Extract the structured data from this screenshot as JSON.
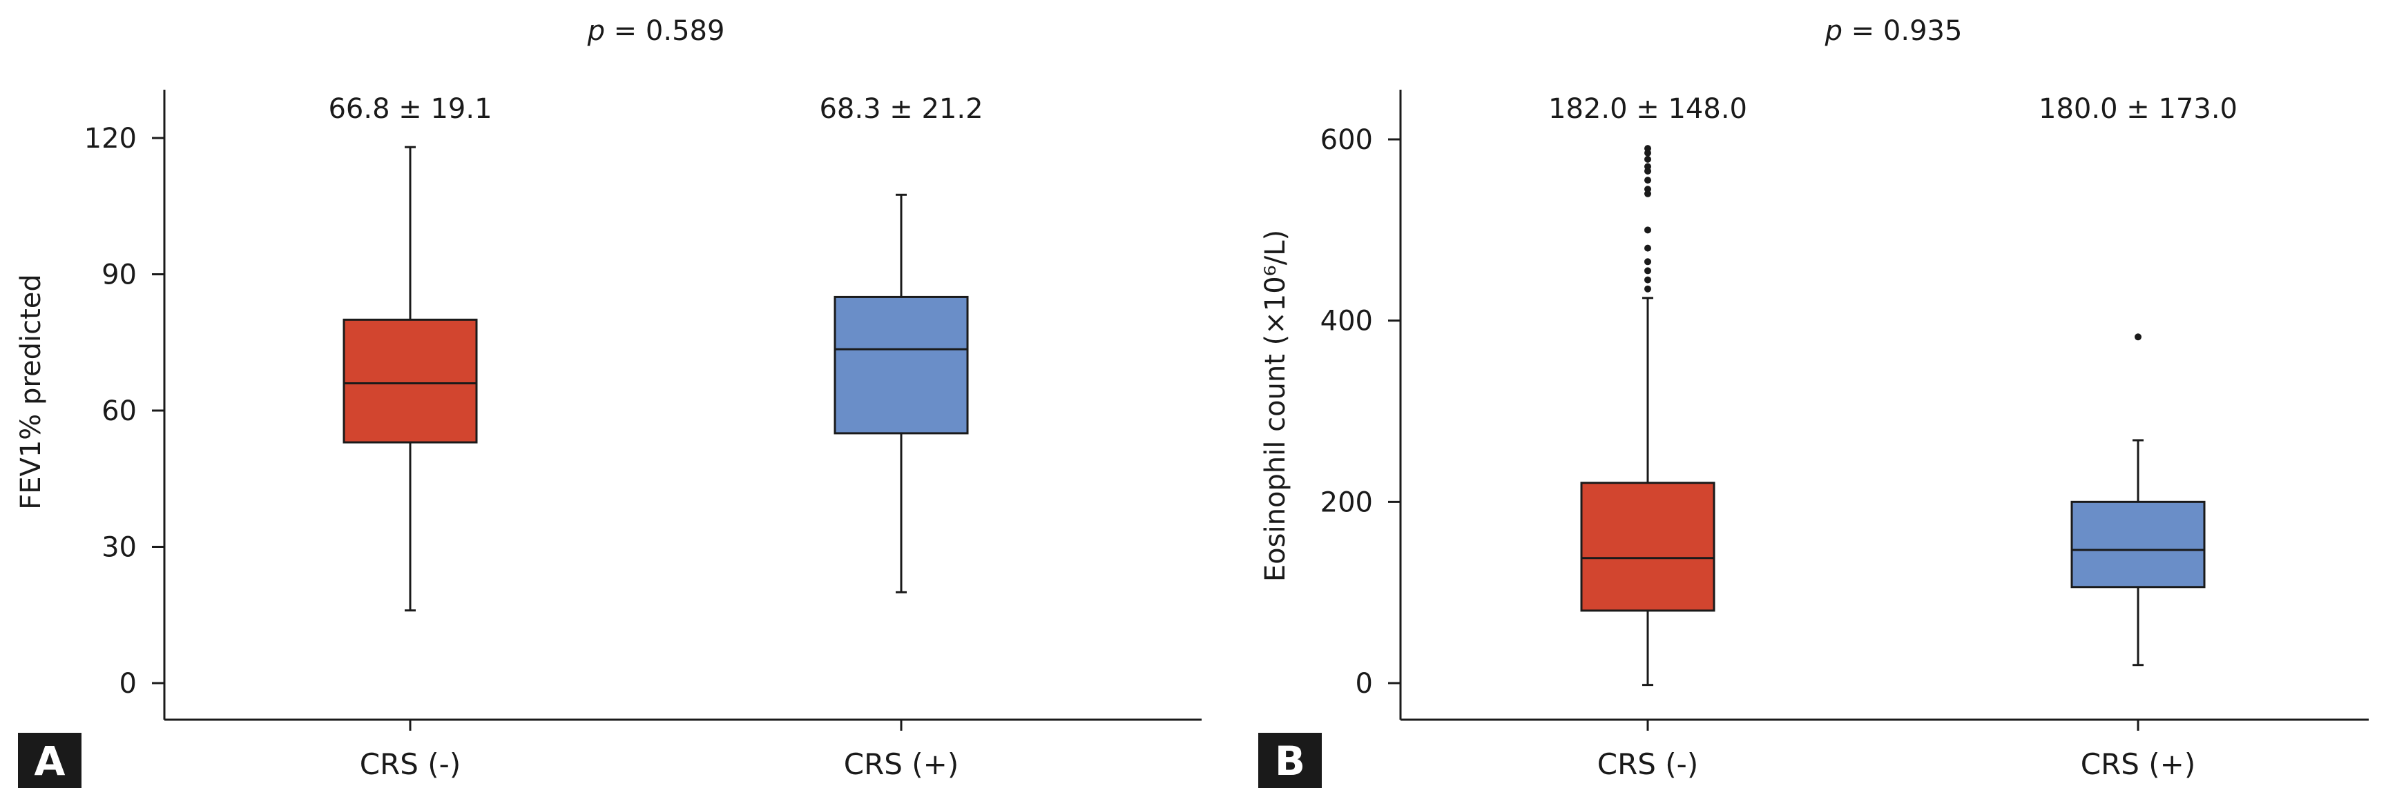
{
  "figure": {
    "colors": {
      "red": "#d2452f",
      "blue": "#6a8ec8",
      "ink": "#1a1a1a",
      "panel_badge": "#1a1a1a"
    }
  },
  "chart_data": [
    {
      "type": "box",
      "panel": "A",
      "p_label": "p",
      "p_value": " = 0.589",
      "ylabel": "FEV1% predicted",
      "xlabel": "",
      "ylim": [
        -8,
        130
      ],
      "yticks": [
        0,
        30,
        60,
        90,
        120
      ],
      "categories": [
        "CRS (-)",
        "CRS (+)"
      ],
      "series": [
        {
          "name": "CRS (-)",
          "color": "red",
          "stat_label": "66.8 ± 19.1",
          "whisker_low": 16,
          "q1": 53,
          "median": 66,
          "q3": 80,
          "whisker_high": 118,
          "outliers": []
        },
        {
          "name": "CRS (+)",
          "color": "blue",
          "stat_label": "68.3 ± 21.2",
          "whisker_low": 20,
          "q1": 55,
          "median": 73.5,
          "q3": 85,
          "whisker_high": 107.5,
          "outliers": []
        }
      ]
    },
    {
      "type": "box",
      "panel": "B",
      "p_label": "p",
      "p_value": " = 0.935",
      "ylabel": "Eosinophil count (×10⁶/L)",
      "xlabel": "",
      "ylim": [
        -40,
        650
      ],
      "yticks": [
        0,
        200,
        400,
        600
      ],
      "categories": [
        "CRS (-)",
        "CRS (+)"
      ],
      "series": [
        {
          "name": "CRS (-)",
          "color": "red",
          "stat_label": "182.0 ± 148.0",
          "whisker_low": -2,
          "q1": 80,
          "median": 138,
          "q3": 221,
          "whisker_high": 425,
          "outliers": [
            435,
            445,
            455,
            465,
            480,
            500,
            540,
            545,
            555,
            565,
            570,
            578,
            585,
            590
          ]
        },
        {
          "name": "CRS (+)",
          "color": "blue",
          "stat_label": "180.0 ± 173.0",
          "whisker_low": 20,
          "q1": 106,
          "median": 147,
          "q3": 200,
          "whisker_high": 268,
          "outliers": [
            382
          ]
        }
      ]
    }
  ]
}
